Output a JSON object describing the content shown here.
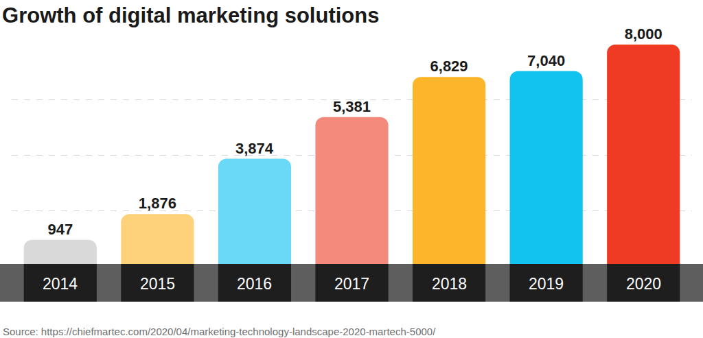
{
  "chart_data": {
    "type": "bar",
    "title": "Growth of digital marketing solutions",
    "categories": [
      "2014",
      "2015",
      "2016",
      "2017",
      "2018",
      "2019",
      "2020"
    ],
    "values": [
      947,
      1876,
      3874,
      5381,
      6829,
      7040,
      8000
    ],
    "value_labels": [
      "947",
      "1,876",
      "3,874",
      "5,381",
      "6,829",
      "7,040",
      "8,000"
    ],
    "colors": [
      "#d9d9d9",
      "#fdd27a",
      "#6ad9f7",
      "#f48a7b",
      "#fdb52b",
      "#12c3f0",
      "#f03b24"
    ],
    "ylim": [
      0,
      8000
    ],
    "yticks": [
      0,
      2000,
      4000,
      6000,
      8000
    ],
    "grid": true,
    "data_labels": true,
    "tick_labels": "x",
    "annotations": [
      "Source: https://chiefmartec.com/2020/04/marketing-technology-landscape-2020-martech-5000/"
    ]
  }
}
